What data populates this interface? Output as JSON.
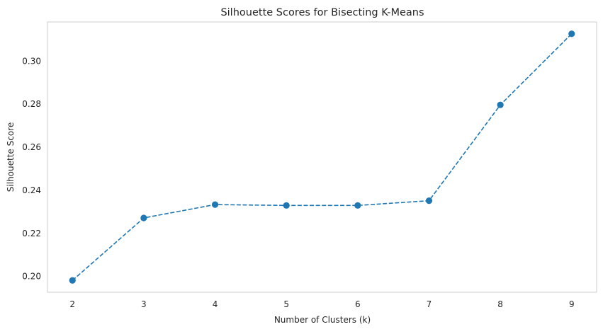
{
  "chart_data": {
    "type": "line",
    "title": "Silhouette Scores for Bisecting K-Means",
    "xlabel": "Number of Clusters (k)",
    "ylabel": "Silhouette Score",
    "x": [
      2,
      3,
      4,
      5,
      6,
      7,
      8,
      9
    ],
    "series": [
      {
        "values": [
          0.198,
          0.227,
          0.2332,
          0.2328,
          0.2328,
          0.235,
          0.2795,
          0.3125
        ],
        "color": "#1f77b4",
        "line_style": "dashed",
        "marker": "circle"
      }
    ],
    "xticks": [
      "2",
      "3",
      "4",
      "5",
      "6",
      "7",
      "8",
      "9"
    ],
    "yticks": [
      "0.20",
      "0.22",
      "0.24",
      "0.26",
      "0.28",
      "0.30"
    ],
    "ytick_values": [
      0.2,
      0.22,
      0.24,
      0.26,
      0.28,
      0.3
    ],
    "xlim": [
      1.65,
      9.35
    ],
    "ylim": [
      0.1925,
      0.318
    ],
    "grid": false,
    "legend": false
  }
}
